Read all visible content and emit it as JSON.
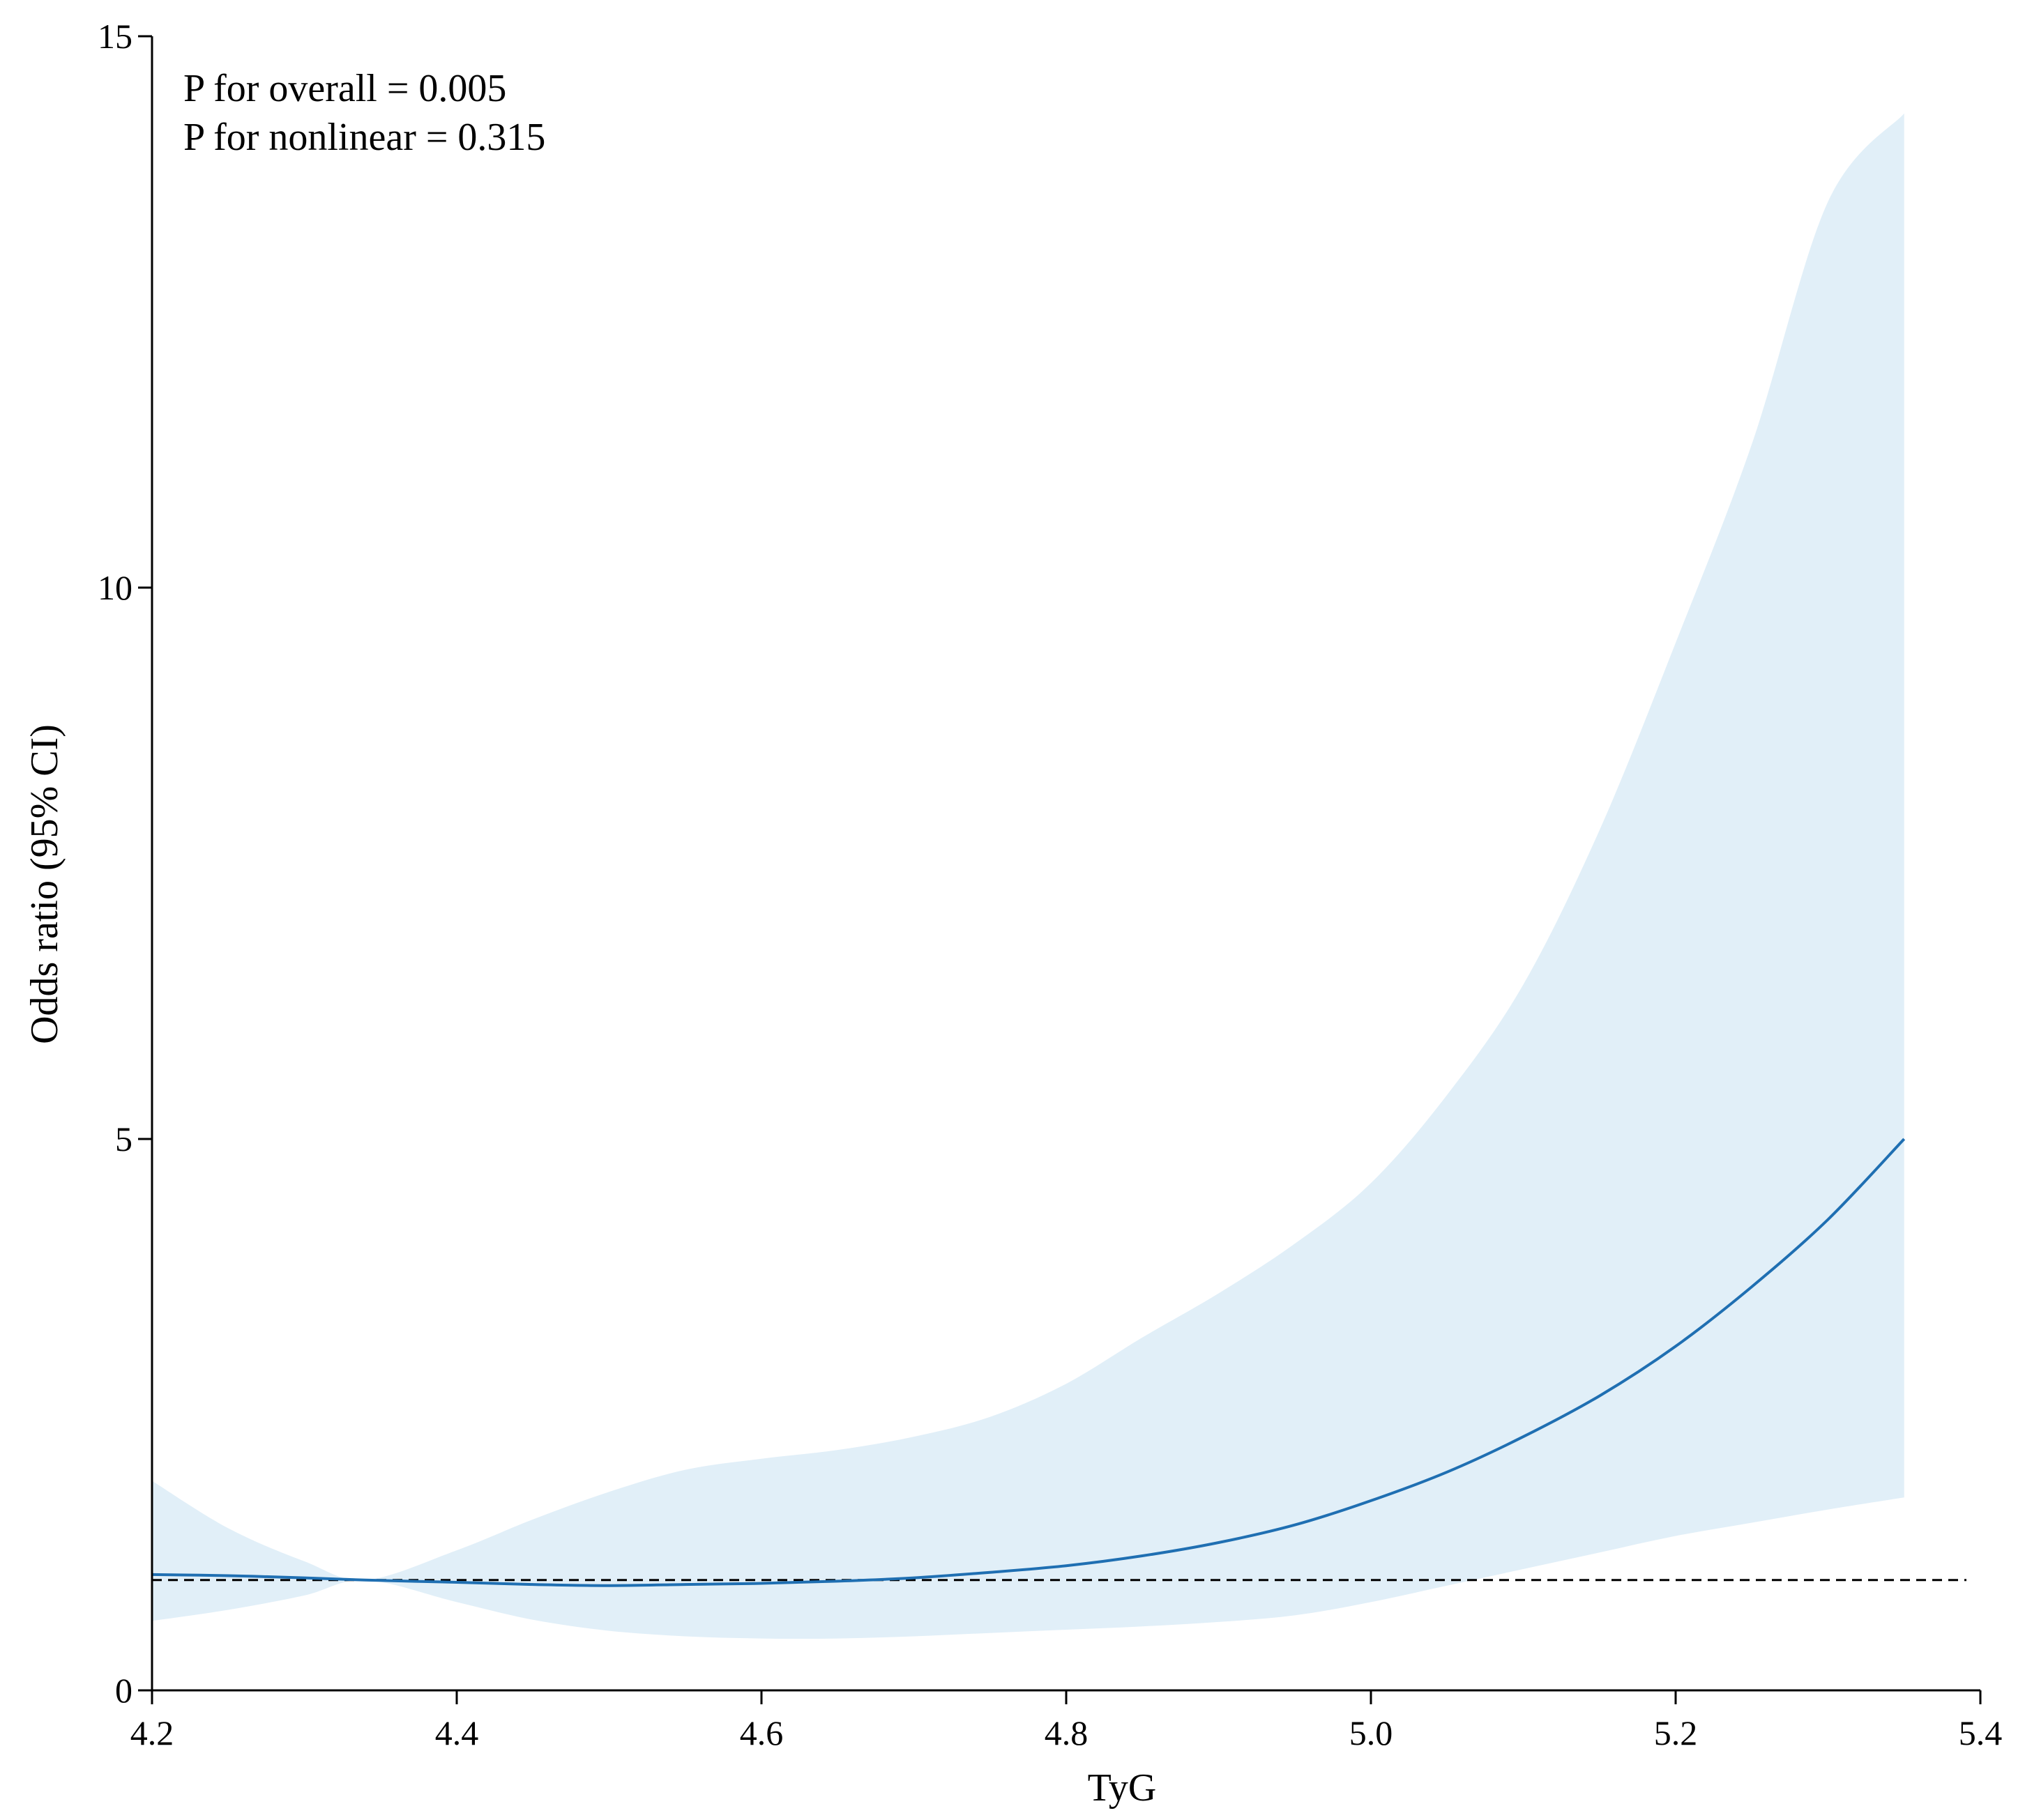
{
  "chart_data": {
    "type": "line",
    "title": "",
    "xlabel": "TyG",
    "ylabel": "Odds ratio (95% CI)",
    "xlim": [
      4.2,
      5.4
    ],
    "ylim": [
      0,
      15
    ],
    "x_ticks": [
      4.2,
      4.4,
      4.6,
      4.8,
      5.0,
      5.2,
      5.4
    ],
    "x_tick_labels": [
      "4.2",
      "4.4",
      "4.6",
      "4.8",
      "5.0",
      "5.2",
      "5.4"
    ],
    "y_ticks": [
      0,
      5,
      10,
      15
    ],
    "y_tick_labels": [
      "0",
      "5",
      "10",
      "15"
    ],
    "grid": false,
    "legend": "none",
    "annotations": [
      "P for overall = 0.005",
      "P for nonlinear = 0.315"
    ],
    "reference_line": {
      "y": 1,
      "style": "dashed",
      "color": "#000000"
    },
    "series": [
      {
        "x": [
          4.2,
          4.25,
          4.3,
          4.34,
          4.4,
          4.45,
          4.5,
          4.55,
          4.6,
          4.65,
          4.7,
          4.75,
          4.8,
          4.85,
          4.9,
          4.95,
          5.0,
          5.05,
          5.1,
          5.15,
          5.2,
          5.25,
          5.3,
          5.35
        ],
        "y": [
          1.05,
          1.04,
          1.02,
          1.0,
          0.98,
          0.96,
          0.95,
          0.96,
          0.97,
          0.99,
          1.02,
          1.07,
          1.13,
          1.22,
          1.34,
          1.5,
          1.72,
          1.98,
          2.3,
          2.67,
          3.12,
          3.66,
          4.27,
          5.0
        ],
        "color": "#1f6fb2"
      }
    ],
    "ci_band": {
      "x": [
        4.2,
        4.25,
        4.3,
        4.34,
        4.4,
        4.45,
        4.5,
        4.55,
        4.6,
        4.65,
        4.7,
        4.75,
        4.8,
        4.85,
        4.9,
        4.95,
        5.0,
        5.05,
        5.1,
        5.15,
        5.2,
        5.25,
        5.3,
        5.35
      ],
      "lower": [
        0.63,
        0.73,
        0.86,
        1.0,
        0.8,
        0.64,
        0.54,
        0.49,
        0.47,
        0.47,
        0.49,
        0.52,
        0.55,
        0.58,
        0.62,
        0.68,
        0.8,
        0.95,
        1.1,
        1.25,
        1.4,
        1.52,
        1.64,
        1.75
      ],
      "upper": [
        1.9,
        1.47,
        1.17,
        1.0,
        1.27,
        1.55,
        1.8,
        2.0,
        2.1,
        2.18,
        2.3,
        2.48,
        2.78,
        3.2,
        3.6,
        4.05,
        4.6,
        5.4,
        6.4,
        7.8,
        9.5,
        11.3,
        13.5,
        14.3
      ],
      "color": "#e1eff8"
    }
  }
}
